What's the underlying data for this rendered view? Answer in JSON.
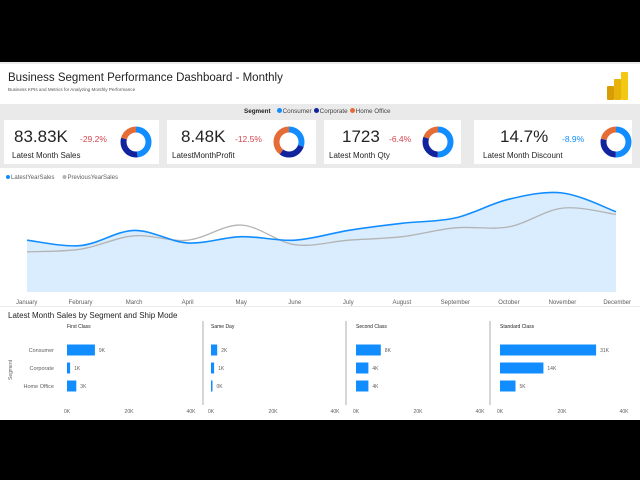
{
  "header": {
    "title": "Business Segment Performance Dashboard - Monthly",
    "subtitle": "Business KPIs and Metrics for Analyzing Monthly Performance",
    "logo_icon": "power-bi-logo"
  },
  "segment_legend": {
    "title": "Segment",
    "items": [
      {
        "label": "Consumer",
        "color": "#118DFF"
      },
      {
        "label": "Corporate",
        "color": "#12239E"
      },
      {
        "label": "Home Office",
        "color": "#E66C37"
      }
    ]
  },
  "kpis": [
    {
      "value": "83.83K",
      "change": "-29.2%",
      "change_color": "#D64550",
      "label": "Latest Month Sales",
      "donut": [
        0.48,
        0.31,
        0.21
      ]
    },
    {
      "value": "8.48K",
      "change": "-12.5%",
      "change_color": "#D64550",
      "label": "LatestMonthProfit",
      "donut": [
        0.3,
        0.3,
        0.4
      ]
    },
    {
      "value": "1723",
      "change": "-6.4%",
      "change_color": "#D64550",
      "label": "Latest Month Qty",
      "donut": [
        0.5,
        0.3,
        0.2
      ]
    },
    {
      "value": "14.7%",
      "change": "-8.9%",
      "change_color": "#118DFF",
      "label": "Latest Month Discount",
      "donut": [
        0.5,
        0.28,
        0.22
      ]
    }
  ],
  "chart_data": [
    {
      "type": "area",
      "legend": {
        "position": "top-left",
        "items": [
          {
            "name": "LatestYearSales",
            "color": "#118DFF"
          },
          {
            "name": "PreviousYearSales",
            "color": "#B3B3B3"
          }
        ]
      },
      "categories": [
        "January",
        "February",
        "March",
        "April",
        "May",
        "June",
        "July",
        "August",
        "September",
        "October",
        "November",
        "December"
      ],
      "series": [
        {
          "name": "LatestYearSales",
          "values": [
            58,
            52,
            69,
            55,
            62,
            58,
            69,
            77,
            83,
            104,
            111,
            90
          ]
        },
        {
          "name": "PreviousYearSales",
          "values": [
            45,
            48,
            63,
            58,
            75,
            53,
            58,
            62,
            72,
            73,
            94,
            87
          ]
        }
      ],
      "ylim": [
        0,
        130
      ],
      "grid": false
    },
    {
      "type": "bar",
      "title": "Latest Month Sales by Segment and Ship Mode",
      "ylabel": "Segment",
      "categories": [
        "Consumer",
        "Corporate",
        "Home Office"
      ],
      "xticks": [
        "0K",
        "20K",
        "40K"
      ],
      "xlim": [
        0,
        40000
      ],
      "panels": [
        {
          "name": "First Class",
          "values": [
            9000,
            1000,
            3000
          ],
          "labels": [
            "9K",
            "1K",
            "3K"
          ]
        },
        {
          "name": "Same Day",
          "values": [
            2000,
            1000,
            0
          ],
          "labels": [
            "2K",
            "1K",
            "0K"
          ]
        },
        {
          "name": "Second Class",
          "values": [
            8000,
            4000,
            4000
          ],
          "labels": [
            "8K",
            "4K",
            "4K"
          ]
        },
        {
          "name": "Standard Class",
          "values": [
            31000,
            14000,
            5000
          ],
          "labels": [
            "31K",
            "14K",
            "5K"
          ]
        }
      ],
      "color": "#118DFF"
    }
  ]
}
